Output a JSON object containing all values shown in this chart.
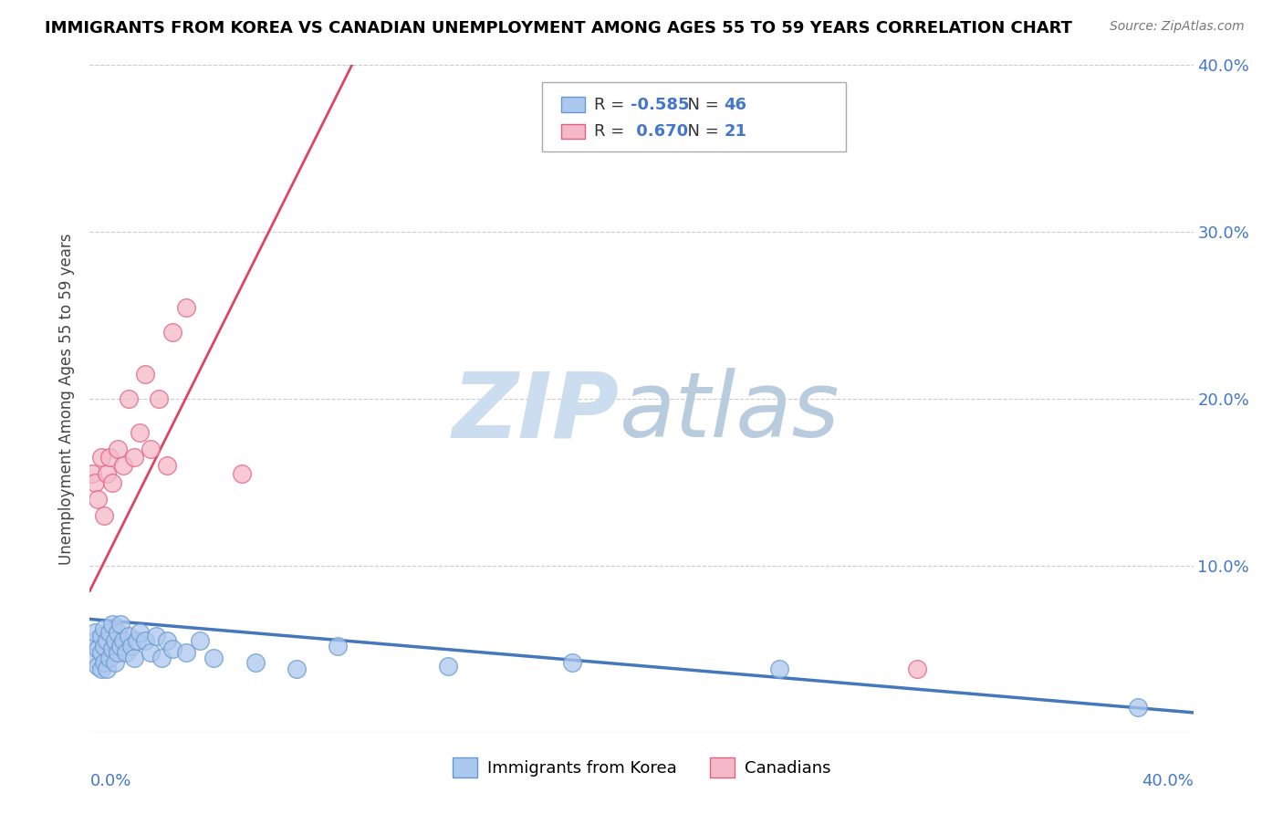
{
  "title": "IMMIGRANTS FROM KOREA VS CANADIAN UNEMPLOYMENT AMONG AGES 55 TO 59 YEARS CORRELATION CHART",
  "source": "Source: ZipAtlas.com",
  "ylabel": "Unemployment Among Ages 55 to 59 years",
  "legend_blue_label": "Immigrants from Korea",
  "legend_pink_label": "Canadians",
  "legend_blue_r_val": "-0.585",
  "legend_blue_n_val": "46",
  "legend_pink_r_val": "0.670",
  "legend_pink_n_val": "21",
  "blue_color": "#adc8ee",
  "pink_color": "#f5b8c8",
  "blue_edge_color": "#6699cc",
  "pink_edge_color": "#e06080",
  "blue_line_color": "#4477bb",
  "pink_line_color": "#dd4466",
  "watermark_zip_color": "#ccddf0",
  "watermark_atlas_color": "#b8ccdd",
  "xlim": [
    0.0,
    0.4
  ],
  "ylim": [
    0.0,
    0.4
  ],
  "yticks": [
    0.0,
    0.1,
    0.2,
    0.3,
    0.4
  ],
  "ytick_labels_right": [
    "",
    "10.0%",
    "20.0%",
    "30.0%",
    "40.0%"
  ],
  "blue_scatter_x": [
    0.001,
    0.002,
    0.002,
    0.003,
    0.003,
    0.004,
    0.004,
    0.004,
    0.005,
    0.005,
    0.005,
    0.006,
    0.006,
    0.007,
    0.007,
    0.008,
    0.008,
    0.009,
    0.009,
    0.01,
    0.01,
    0.011,
    0.011,
    0.012,
    0.013,
    0.014,
    0.015,
    0.016,
    0.017,
    0.018,
    0.02,
    0.022,
    0.024,
    0.026,
    0.028,
    0.03,
    0.035,
    0.04,
    0.045,
    0.06,
    0.075,
    0.09,
    0.13,
    0.175,
    0.25,
    0.38
  ],
  "blue_scatter_y": [
    0.045,
    0.055,
    0.06,
    0.04,
    0.05,
    0.038,
    0.048,
    0.058,
    0.042,
    0.052,
    0.062,
    0.038,
    0.055,
    0.045,
    0.06,
    0.05,
    0.065,
    0.042,
    0.055,
    0.048,
    0.06,
    0.052,
    0.065,
    0.055,
    0.048,
    0.058,
    0.052,
    0.045,
    0.055,
    0.06,
    0.055,
    0.048,
    0.058,
    0.045,
    0.055,
    0.05,
    0.048,
    0.055,
    0.045,
    0.042,
    0.038,
    0.052,
    0.04,
    0.042,
    0.038,
    0.015
  ],
  "pink_scatter_x": [
    0.001,
    0.002,
    0.003,
    0.004,
    0.005,
    0.006,
    0.007,
    0.008,
    0.01,
    0.012,
    0.014,
    0.016,
    0.018,
    0.02,
    0.022,
    0.025,
    0.028,
    0.03,
    0.035,
    0.055,
    0.3
  ],
  "pink_scatter_y": [
    0.155,
    0.15,
    0.14,
    0.165,
    0.13,
    0.155,
    0.165,
    0.15,
    0.17,
    0.16,
    0.2,
    0.165,
    0.18,
    0.215,
    0.17,
    0.2,
    0.16,
    0.24,
    0.255,
    0.155,
    0.038
  ],
  "blue_line_x0": 0.0,
  "blue_line_y0": 0.068,
  "blue_line_x1": 0.4,
  "blue_line_y1": 0.012,
  "pink_line_x0": 0.0,
  "pink_line_y0": 0.085,
  "pink_line_x1": 0.095,
  "pink_line_y1": 0.4
}
